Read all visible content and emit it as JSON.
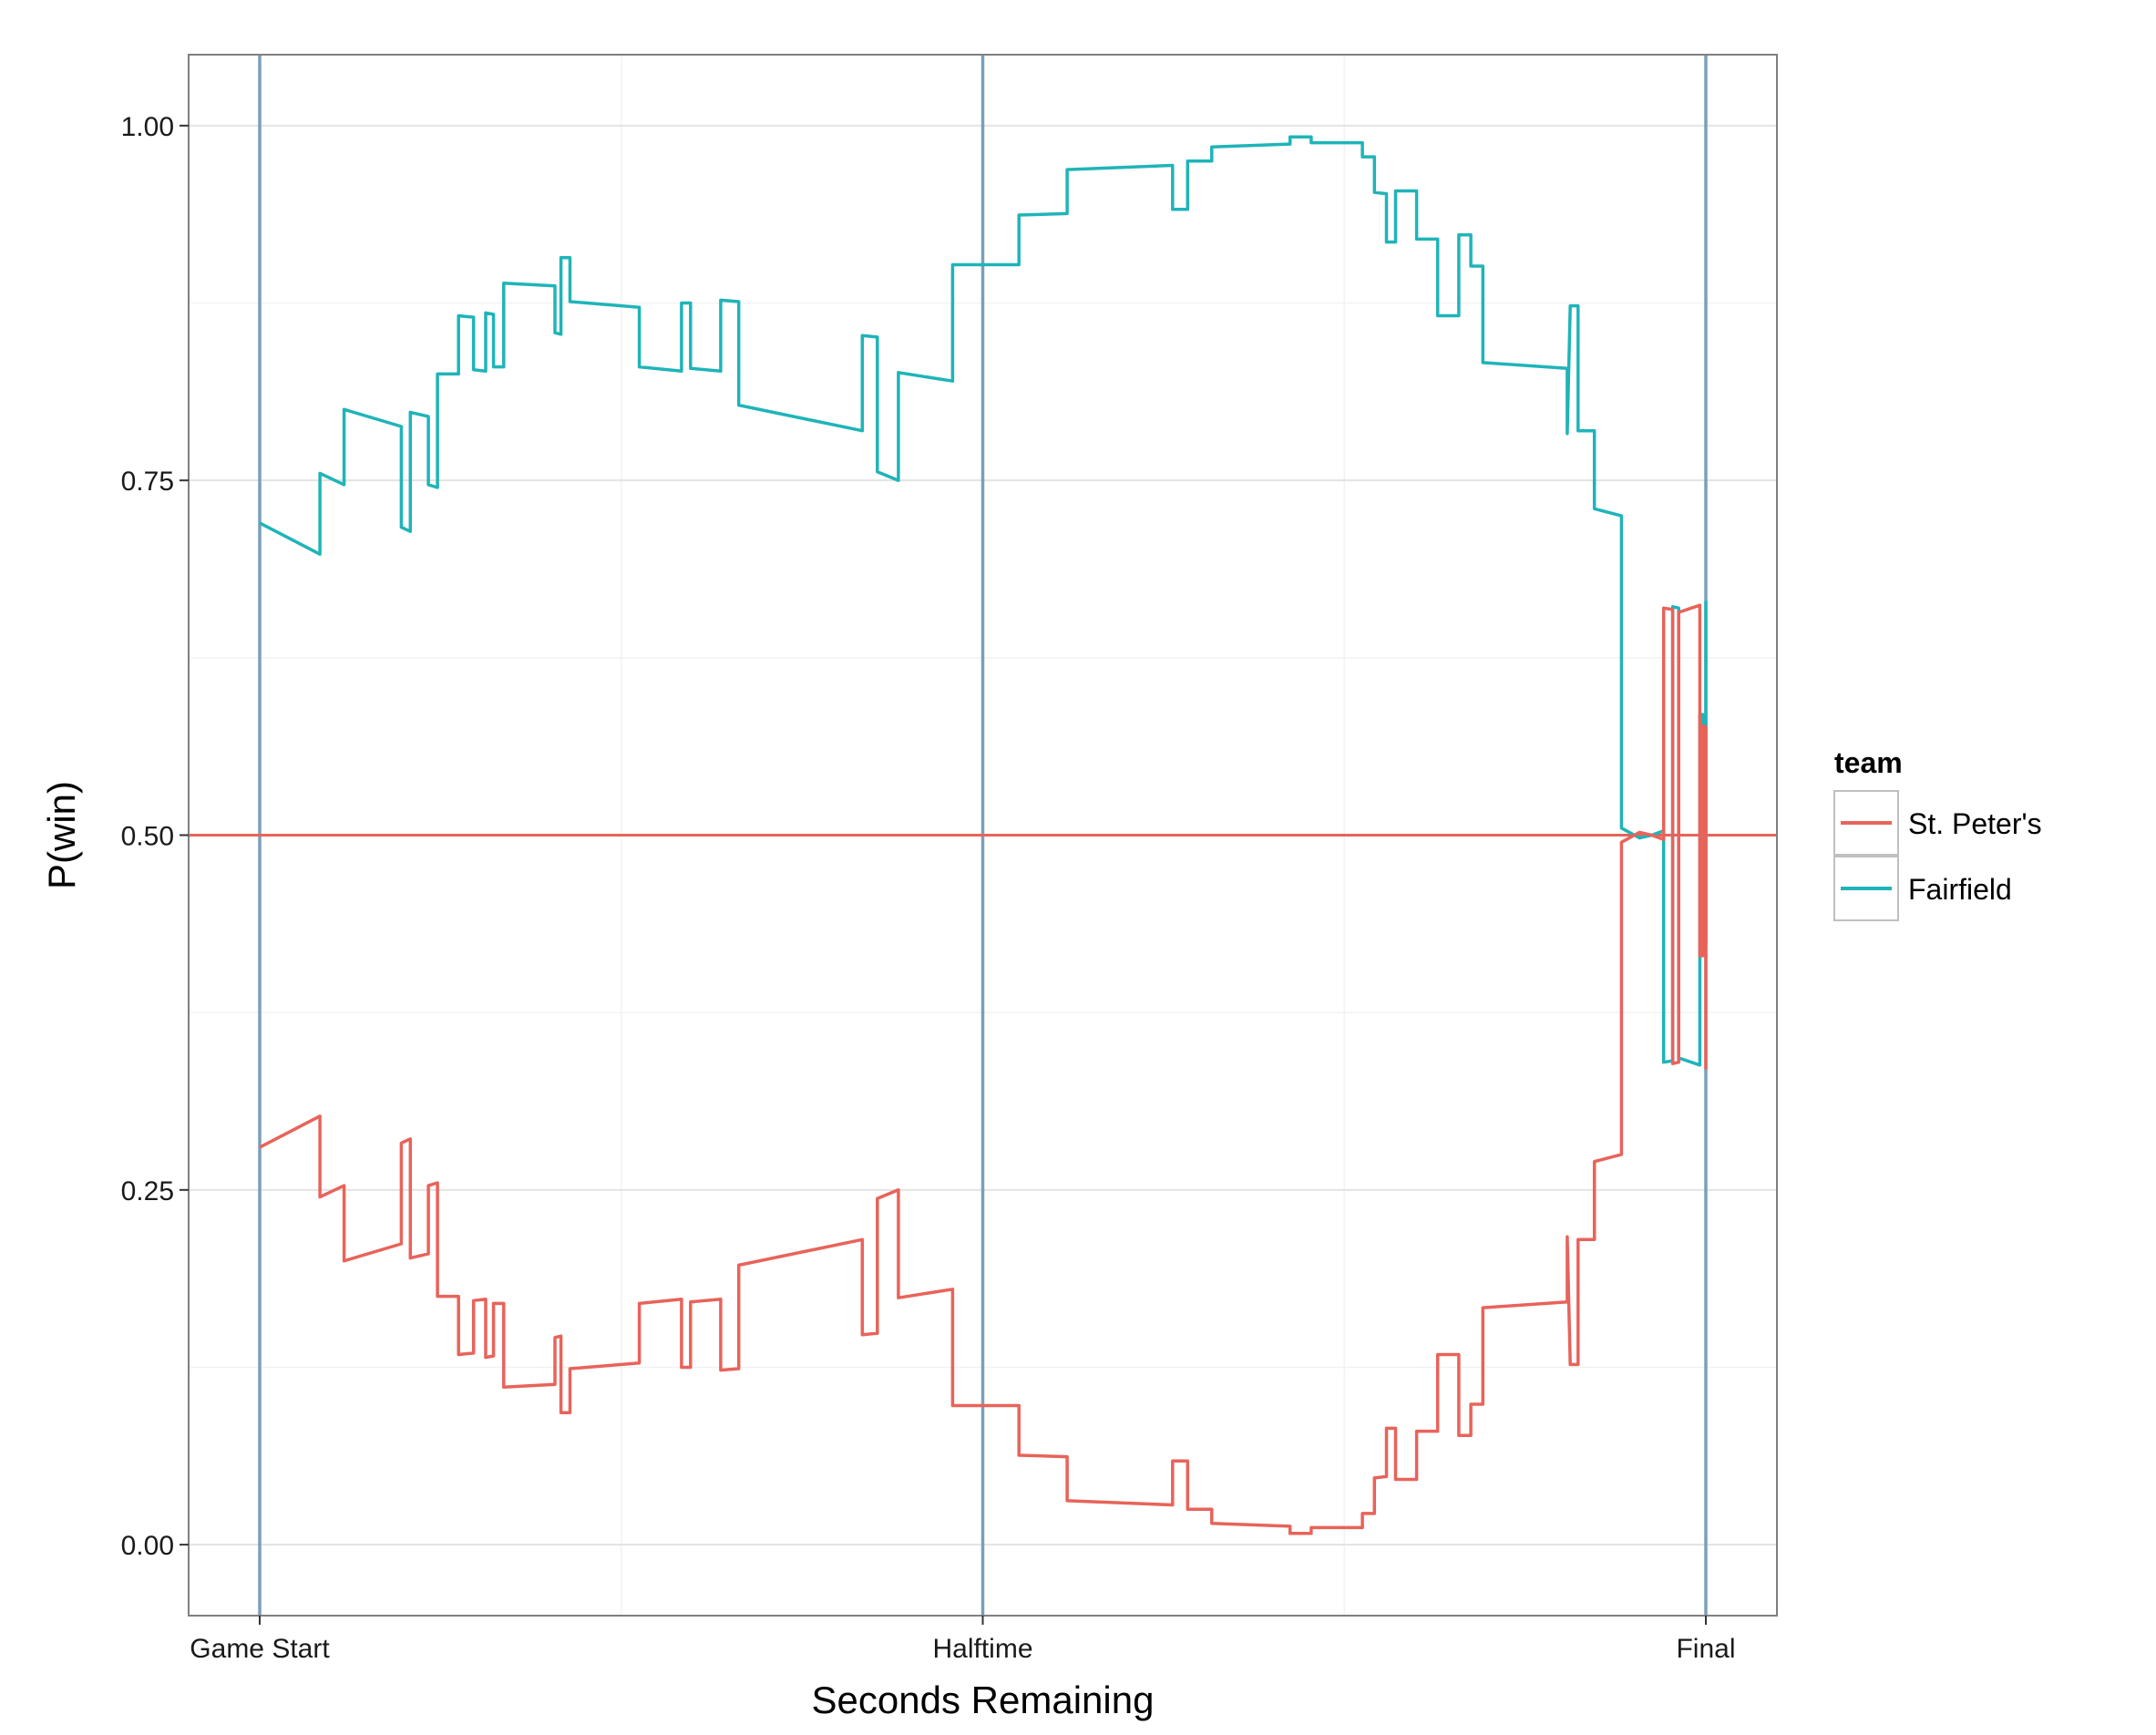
{
  "chart_data": {
    "type": "line",
    "xlabel": "Seconds Remaining",
    "ylabel": "P(win)",
    "x_range": [
      0,
      2400
    ],
    "ylim": [
      -0.05,
      1.05
    ],
    "x_ticks": [
      {
        "value": 0,
        "label": "Game Start"
      },
      {
        "value": 1200,
        "label": "Halftime"
      },
      {
        "value": 2400,
        "label": "Final"
      }
    ],
    "y_ticks": [
      {
        "value": 0.0,
        "label": "0.00"
      },
      {
        "value": 0.25,
        "label": "0.25"
      },
      {
        "value": 0.5,
        "label": "0.50"
      },
      {
        "value": 0.75,
        "label": "0.75"
      },
      {
        "value": 1.0,
        "label": "1.00"
      }
    ],
    "grid": true,
    "reference_lines": {
      "vertical": [
        0,
        1200,
        2400
      ],
      "vertical_color": "#7a9fb9",
      "horizontal": 0.5,
      "horizontal_color": "#e8635a"
    },
    "legend": {
      "title": "team",
      "position": "right",
      "entries": [
        {
          "label": "St. Peter's",
          "color": "#e8635a"
        },
        {
          "label": "Fairfield",
          "color": "#1fb4b8"
        }
      ]
    },
    "series": [
      {
        "name": "Fairfield",
        "color": "#1fb4b8",
        "points": [
          [
            0,
            0.72
          ],
          [
            100,
            0.698
          ],
          [
            100,
            0.755
          ],
          [
            140,
            0.747
          ],
          [
            140,
            0.8
          ],
          [
            235,
            0.788
          ],
          [
            235,
            0.717
          ],
          [
            250,
            0.714
          ],
          [
            250,
            0.798
          ],
          [
            280,
            0.795
          ],
          [
            280,
            0.747
          ],
          [
            295,
            0.745
          ],
          [
            295,
            0.825
          ],
          [
            330,
            0.825
          ],
          [
            330,
            0.866
          ],
          [
            355,
            0.865
          ],
          [
            355,
            0.828
          ],
          [
            375,
            0.827
          ],
          [
            375,
            0.868
          ],
          [
            388,
            0.867
          ],
          [
            388,
            0.83
          ],
          [
            405,
            0.83
          ],
          [
            405,
            0.889
          ],
          [
            490,
            0.887
          ],
          [
            490,
            0.854
          ],
          [
            500,
            0.853
          ],
          [
            500,
            0.907
          ],
          [
            515,
            0.907
          ],
          [
            515,
            0.876
          ],
          [
            630,
            0.872
          ],
          [
            630,
            0.83
          ],
          [
            700,
            0.827
          ],
          [
            700,
            0.875
          ],
          [
            715,
            0.875
          ],
          [
            715,
            0.829
          ],
          [
            765,
            0.827
          ],
          [
            765,
            0.877
          ],
          [
            795,
            0.876
          ],
          [
            795,
            0.803
          ],
          [
            1000,
            0.785
          ],
          [
            1000,
            0.852
          ],
          [
            1025,
            0.851
          ],
          [
            1025,
            0.756
          ],
          [
            1060,
            0.75
          ],
          [
            1060,
            0.826
          ],
          [
            1150,
            0.82
          ],
          [
            1150,
            0.902
          ],
          [
            1260,
            0.902
          ],
          [
            1260,
            0.937
          ],
          [
            1340,
            0.938
          ],
          [
            1340,
            0.969
          ],
          [
            1515,
            0.972
          ],
          [
            1515,
            0.941
          ],
          [
            1540,
            0.941
          ],
          [
            1540,
            0.975
          ],
          [
            1580,
            0.975
          ],
          [
            1580,
            0.985
          ],
          [
            1710,
            0.987
          ],
          [
            1710,
            0.992
          ],
          [
            1745,
            0.992
          ],
          [
            1745,
            0.988
          ],
          [
            1830,
            0.988
          ],
          [
            1830,
            0.978
          ],
          [
            1850,
            0.978
          ],
          [
            1850,
            0.953
          ],
          [
            1870,
            0.952
          ],
          [
            1870,
            0.918
          ],
          [
            1885,
            0.918
          ],
          [
            1885,
            0.954
          ],
          [
            1920,
            0.954
          ],
          [
            1920,
            0.92
          ],
          [
            1955,
            0.92
          ],
          [
            1955,
            0.866
          ],
          [
            1990,
            0.866
          ],
          [
            1990,
            0.923
          ],
          [
            2010,
            0.923
          ],
          [
            2010,
            0.901
          ],
          [
            2030,
            0.901
          ],
          [
            2030,
            0.833
          ],
          [
            2170,
            0.829
          ],
          [
            2170,
            0.783
          ],
          [
            2175,
            0.873
          ],
          [
            2188,
            0.873
          ],
          [
            2188,
            0.785
          ],
          [
            2215,
            0.785
          ],
          [
            2215,
            0.73
          ],
          [
            2260,
            0.725
          ],
          [
            2260,
            0.505
          ],
          [
            2290,
            0.498
          ],
          [
            2310,
            0.5
          ],
          [
            2330,
            0.503
          ],
          [
            2330,
            0.34
          ],
          [
            2345,
            0.341
          ],
          [
            2345,
            0.661
          ],
          [
            2355,
            0.66
          ],
          [
            2355,
            0.343
          ],
          [
            2390,
            0.338
          ],
          [
            2390,
            0.585
          ],
          [
            2395,
            0.585
          ],
          [
            2395,
            0.423
          ],
          [
            2400,
            0.424
          ],
          [
            2400,
            0.665
          ]
        ]
      },
      {
        "name": "St. Peter's",
        "color": "#e8635a",
        "points": [
          [
            0,
            0.28
          ],
          [
            100,
            0.302
          ],
          [
            100,
            0.245
          ],
          [
            140,
            0.253
          ],
          [
            140,
            0.2
          ],
          [
            235,
            0.212
          ],
          [
            235,
            0.283
          ],
          [
            250,
            0.286
          ],
          [
            250,
            0.202
          ],
          [
            280,
            0.205
          ],
          [
            280,
            0.253
          ],
          [
            295,
            0.255
          ],
          [
            295,
            0.175
          ],
          [
            330,
            0.175
          ],
          [
            330,
            0.134
          ],
          [
            355,
            0.135
          ],
          [
            355,
            0.172
          ],
          [
            375,
            0.173
          ],
          [
            375,
            0.132
          ],
          [
            388,
            0.133
          ],
          [
            388,
            0.17
          ],
          [
            405,
            0.17
          ],
          [
            405,
            0.111
          ],
          [
            490,
            0.113
          ],
          [
            490,
            0.146
          ],
          [
            500,
            0.147
          ],
          [
            500,
            0.093
          ],
          [
            515,
            0.093
          ],
          [
            515,
            0.124
          ],
          [
            630,
            0.128
          ],
          [
            630,
            0.17
          ],
          [
            700,
            0.173
          ],
          [
            700,
            0.125
          ],
          [
            715,
            0.125
          ],
          [
            715,
            0.171
          ],
          [
            765,
            0.173
          ],
          [
            765,
            0.123
          ],
          [
            795,
            0.124
          ],
          [
            795,
            0.197
          ],
          [
            1000,
            0.215
          ],
          [
            1000,
            0.148
          ],
          [
            1025,
            0.149
          ],
          [
            1025,
            0.244
          ],
          [
            1060,
            0.25
          ],
          [
            1060,
            0.174
          ],
          [
            1150,
            0.18
          ],
          [
            1150,
            0.098
          ],
          [
            1260,
            0.098
          ],
          [
            1260,
            0.063
          ],
          [
            1340,
            0.062
          ],
          [
            1340,
            0.031
          ],
          [
            1515,
            0.028
          ],
          [
            1515,
            0.059
          ],
          [
            1540,
            0.059
          ],
          [
            1540,
            0.025
          ],
          [
            1580,
            0.025
          ],
          [
            1580,
            0.015
          ],
          [
            1710,
            0.013
          ],
          [
            1710,
            0.008
          ],
          [
            1745,
            0.008
          ],
          [
            1745,
            0.012
          ],
          [
            1830,
            0.012
          ],
          [
            1830,
            0.022
          ],
          [
            1850,
            0.022
          ],
          [
            1850,
            0.047
          ],
          [
            1870,
            0.048
          ],
          [
            1870,
            0.082
          ],
          [
            1885,
            0.082
          ],
          [
            1885,
            0.046
          ],
          [
            1920,
            0.046
          ],
          [
            1920,
            0.08
          ],
          [
            1955,
            0.08
          ],
          [
            1955,
            0.134
          ],
          [
            1990,
            0.134
          ],
          [
            1990,
            0.077
          ],
          [
            2010,
            0.077
          ],
          [
            2010,
            0.099
          ],
          [
            2030,
            0.099
          ],
          [
            2030,
            0.167
          ],
          [
            2170,
            0.171
          ],
          [
            2170,
            0.217
          ],
          [
            2175,
            0.127
          ],
          [
            2188,
            0.127
          ],
          [
            2188,
            0.215
          ],
          [
            2215,
            0.215
          ],
          [
            2215,
            0.27
          ],
          [
            2260,
            0.275
          ],
          [
            2260,
            0.495
          ],
          [
            2290,
            0.502
          ],
          [
            2310,
            0.5
          ],
          [
            2330,
            0.497
          ],
          [
            2330,
            0.66
          ],
          [
            2345,
            0.659
          ],
          [
            2345,
            0.339
          ],
          [
            2355,
            0.34
          ],
          [
            2355,
            0.657
          ],
          [
            2390,
            0.662
          ],
          [
            2390,
            0.415
          ],
          [
            2395,
            0.415
          ],
          [
            2395,
            0.577
          ],
          [
            2400,
            0.576
          ],
          [
            2400,
            0.335
          ]
        ]
      }
    ]
  }
}
